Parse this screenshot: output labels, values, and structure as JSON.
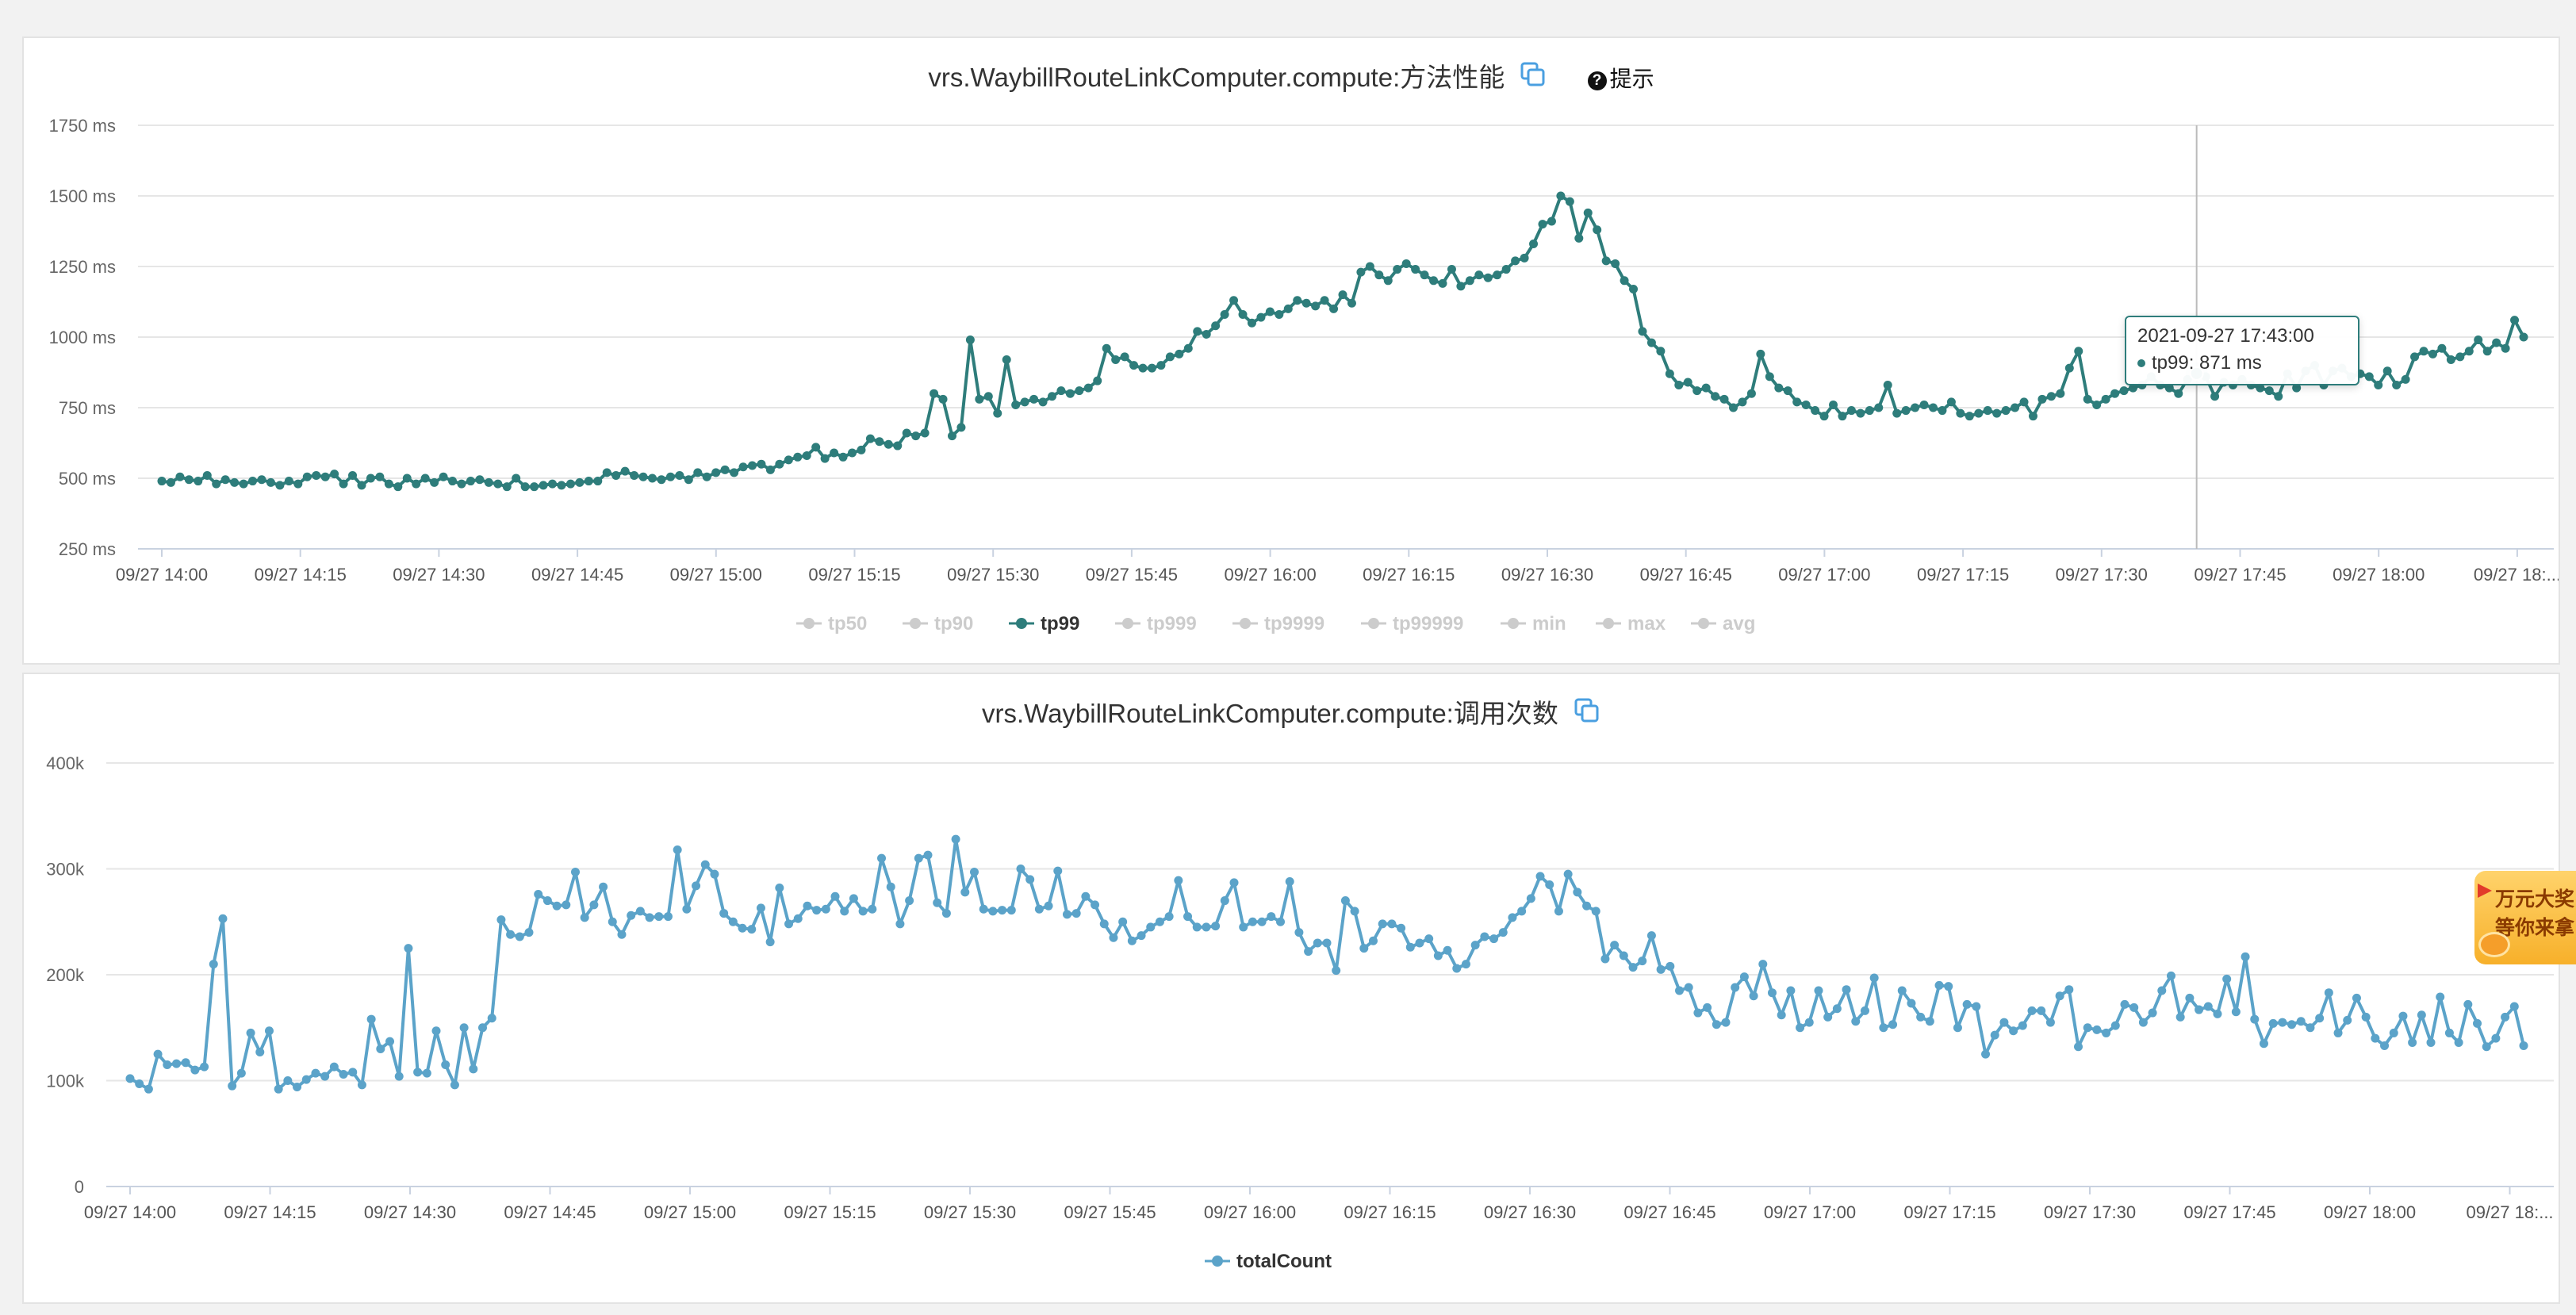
{
  "panel1": {
    "title": "vrs.WaybillRouteLinkComputer.compute:方法性能",
    "copy_icon": "copy-icon",
    "hint_icon": "question-circle-icon",
    "hint_label": "提示",
    "tooltip": {
      "time": "2021-09-27 17:43:00",
      "text": "tp99: 871 ms"
    }
  },
  "panel2": {
    "title": "vrs.WaybillRouteLinkComputer.compute:调用次数",
    "copy_icon": "copy-icon"
  },
  "promo": {
    "line1": "万元大奖",
    "line2": "等你来拿"
  },
  "colors": {
    "tp99": "#2e7d7b",
    "totalCount": "#5ba3c9",
    "inactive_legend": "#cccccc"
  },
  "chart_data": [
    {
      "type": "line",
      "title": "vrs.WaybillRouteLinkComputer.compute:方法性能",
      "y_ticks": [
        "250 ms",
        "500 ms",
        "750 ms",
        "1000 ms",
        "1250 ms",
        "1500 ms",
        "1750 ms"
      ],
      "ylim": [
        250,
        1750
      ],
      "y_unit": "ms",
      "x_ticks": [
        "09/27 14:00",
        "09/27 14:15",
        "09/27 14:30",
        "09/27 14:45",
        "09/27 15:00",
        "09/27 15:15",
        "09/27 15:30",
        "09/27 15:45",
        "09/27 16:00",
        "09/27 16:15",
        "09/27 16:30",
        "09/27 16:45",
        "09/27 17:00",
        "09/27 17:15",
        "09/27 17:30",
        "09/27 17:45",
        "09/27 18:00",
        "09/27 18:..."
      ],
      "grid": "horizontal",
      "legend_position": "bottom",
      "legend": [
        {
          "name": "tp50",
          "active": false
        },
        {
          "name": "tp90",
          "active": false
        },
        {
          "name": "tp99",
          "active": true
        },
        {
          "name": "tp999",
          "active": false
        },
        {
          "name": "tp9999",
          "active": false
        },
        {
          "name": "tp99999",
          "active": false
        },
        {
          "name": "min",
          "active": false
        },
        {
          "name": "max",
          "active": false
        },
        {
          "name": "avg",
          "active": false
        }
      ],
      "series": [
        {
          "name": "tp99",
          "x_start": "09/27 14:00",
          "step_minutes": 1,
          "values": [
            490,
            485,
            505,
            495,
            490,
            510,
            480,
            495,
            485,
            480,
            490,
            495,
            485,
            475,
            490,
            480,
            505,
            510,
            505,
            515,
            480,
            510,
            475,
            500,
            505,
            480,
            470,
            500,
            480,
            500,
            485,
            505,
            490,
            480,
            490,
            495,
            485,
            480,
            470,
            500,
            470,
            470,
            475,
            480,
            475,
            480,
            485,
            490,
            490,
            520,
            510,
            525,
            510,
            505,
            500,
            495,
            505,
            510,
            495,
            520,
            505,
            520,
            530,
            520,
            540,
            545,
            550,
            530,
            550,
            565,
            575,
            580,
            610,
            570,
            590,
            575,
            590,
            600,
            640,
            630,
            620,
            615,
            660,
            650,
            660,
            800,
            780,
            650,
            680,
            990,
            780,
            790,
            730,
            920,
            760,
            770,
            780,
            770,
            790,
            810,
            800,
            810,
            820,
            845,
            960,
            920,
            930,
            900,
            890,
            890,
            900,
            930,
            940,
            960,
            1020,
            1010,
            1040,
            1080,
            1130,
            1080,
            1050,
            1070,
            1090,
            1080,
            1100,
            1130,
            1120,
            1110,
            1130,
            1100,
            1150,
            1120,
            1230,
            1250,
            1220,
            1200,
            1240,
            1260,
            1240,
            1220,
            1200,
            1190,
            1240,
            1180,
            1200,
            1220,
            1210,
            1220,
            1240,
            1270,
            1280,
            1330,
            1400,
            1410,
            1500,
            1480,
            1350,
            1440,
            1380,
            1270,
            1260,
            1200,
            1170,
            1020,
            980,
            950,
            870,
            830,
            840,
            810,
            820,
            790,
            780,
            750,
            770,
            800,
            940,
            860,
            820,
            810,
            770,
            760,
            740,
            720,
            760,
            720,
            740,
            730,
            740,
            750,
            830,
            730,
            740,
            750,
            760,
            750,
            740,
            770,
            730,
            720,
            730,
            740,
            730,
            740,
            750,
            770,
            720,
            780,
            790,
            800,
            890,
            950,
            780,
            760,
            780,
            800,
            810,
            820,
            830,
            860,
            830,
            820,
            800,
            850,
            871,
            860,
            790,
            840,
            830,
            850,
            830,
            820,
            810,
            790,
            870,
            820,
            880,
            900,
            830,
            880,
            890,
            860,
            870,
            860,
            830,
            880,
            830,
            850,
            930,
            950,
            940,
            960,
            920,
            930,
            950,
            990,
            950,
            980,
            960,
            1060,
            1000
          ]
        }
      ],
      "highlight": {
        "series": "tp99",
        "x": "2021-09-27 17:43:00",
        "value": 871
      }
    },
    {
      "type": "line",
      "title": "vrs.WaybillRouteLinkComputer.compute:调用次数",
      "y_ticks": [
        "0",
        "100k",
        "200k",
        "300k",
        "400k"
      ],
      "ylim": [
        0,
        400000
      ],
      "x_ticks": [
        "09/27 14:00",
        "09/27 14:15",
        "09/27 14:30",
        "09/27 14:45",
        "09/27 15:00",
        "09/27 15:15",
        "09/27 15:30",
        "09/27 15:45",
        "09/27 16:00",
        "09/27 16:15",
        "09/27 16:30",
        "09/27 16:45",
        "09/27 17:00",
        "09/27 17:15",
        "09/27 17:30",
        "09/27 17:45",
        "09/27 18:00",
        "09/27 18:..."
      ],
      "grid": "horizontal",
      "legend_position": "bottom",
      "legend": [
        {
          "name": "totalCount",
          "active": true
        }
      ],
      "series": [
        {
          "name": "totalCount",
          "x_start": "09/27 14:00",
          "step_minutes": 1,
          "values": [
            102000,
            97000,
            92000,
            125000,
            115000,
            116000,
            117000,
            110000,
            113000,
            210000,
            253000,
            95000,
            107000,
            145000,
            127000,
            147000,
            92000,
            100000,
            94000,
            101000,
            107000,
            104000,
            113000,
            106000,
            108000,
            96000,
            158000,
            130000,
            137000,
            104000,
            225000,
            108000,
            107000,
            147000,
            115000,
            96000,
            150000,
            111000,
            150000,
            159000,
            252000,
            238000,
            236000,
            240000,
            276000,
            270000,
            265000,
            266000,
            297000,
            254000,
            266000,
            283000,
            250000,
            238000,
            256000,
            260000,
            254000,
            255000,
            255000,
            318000,
            262000,
            284000,
            304000,
            295000,
            258000,
            250000,
            244000,
            243000,
            263000,
            231000,
            282000,
            248000,
            253000,
            265000,
            261000,
            262000,
            274000,
            260000,
            272000,
            260000,
            262000,
            310000,
            283000,
            248000,
            270000,
            310000,
            313000,
            268000,
            258000,
            328000,
            278000,
            297000,
            262000,
            260000,
            261000,
            261000,
            300000,
            290000,
            262000,
            265000,
            298000,
            257000,
            258000,
            274000,
            266000,
            248000,
            235000,
            250000,
            232000,
            237000,
            245000,
            250000,
            255000,
            289000,
            255000,
            245000,
            245000,
            246000,
            270000,
            287000,
            245000,
            250000,
            250000,
            255000,
            250000,
            288000,
            240000,
            222000,
            230000,
            230000,
            204000,
            270000,
            260000,
            225000,
            232000,
            248000,
            248000,
            244000,
            226000,
            230000,
            234000,
            218000,
            223000,
            206000,
            210000,
            228000,
            236000,
            234000,
            240000,
            254000,
            260000,
            272000,
            293000,
            285000,
            260000,
            295000,
            278000,
            265000,
            260000,
            215000,
            228000,
            218000,
            207000,
            213000,
            237000,
            205000,
            208000,
            185000,
            188000,
            164000,
            169000,
            153000,
            155000,
            188000,
            198000,
            180000,
            210000,
            183000,
            162000,
            185000,
            150000,
            155000,
            185000,
            160000,
            168000,
            186000,
            156000,
            166000,
            197000,
            150000,
            153000,
            185000,
            173000,
            160000,
            156000,
            190000,
            189000,
            150000,
            172000,
            170000,
            125000,
            143000,
            155000,
            147000,
            152000,
            166000,
            166000,
            155000,
            180000,
            186000,
            132000,
            150000,
            148000,
            145000,
            152000,
            172000,
            169000,
            155000,
            164000,
            185000,
            199000,
            160000,
            178000,
            167000,
            170000,
            163000,
            196000,
            165000,
            217000,
            158000,
            135000,
            154000,
            155000,
            153000,
            156000,
            150000,
            159000,
            183000,
            145000,
            157000,
            178000,
            160000,
            140000,
            133000,
            145000,
            161000,
            136000,
            162000,
            136000,
            179000,
            145000,
            136000,
            172000,
            154000,
            132000,
            140000,
            160000,
            170000,
            133000
          ]
        }
      ]
    }
  ]
}
